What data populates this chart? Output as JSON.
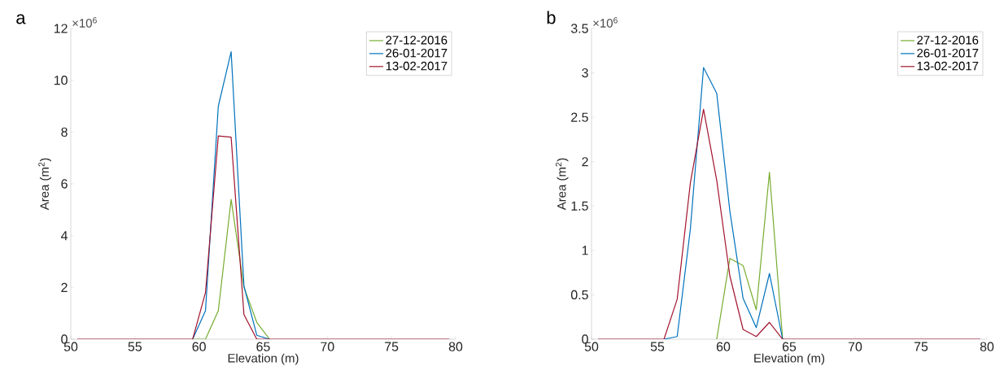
{
  "chart_data": [
    {
      "type": "line",
      "title": "a",
      "xlabel": "Elevation (m)",
      "ylabel": "Area (m$^{2}$)",
      "annotations": [
        "×10$^{6}$"
      ],
      "x": [
        50.5,
        51.5,
        52.5,
        53.5,
        54.5,
        55.5,
        56.5,
        57.5,
        58.5,
        59.5,
        60.5,
        61.5,
        62.5,
        63.5,
        64.5,
        65.5,
        66.5,
        67.5,
        68.5,
        69.5,
        70.5,
        71.5,
        72.5,
        73.5,
        74.5,
        75.5,
        76.5,
        77.5,
        78.5,
        79.5
      ],
      "series": [
        {
          "name": "27-12-2016",
          "color": "#77ac30",
          "values": [
            null,
            null,
            null,
            null,
            null,
            null,
            null,
            null,
            null,
            0,
            0,
            1.1,
            5.4,
            2.0,
            0.65,
            0,
            null,
            null,
            null,
            null,
            null,
            null,
            null,
            null,
            null,
            null,
            null,
            null,
            null,
            null
          ]
        },
        {
          "name": "26-01-2017",
          "color": "#0072bd",
          "values": [
            null,
            null,
            null,
            null,
            null,
            null,
            null,
            null,
            null,
            0,
            1.1,
            9.0,
            11.1,
            2.05,
            0.15,
            0,
            null,
            null,
            null,
            null,
            null,
            null,
            null,
            null,
            null,
            null,
            null,
            null,
            null,
            null
          ]
        },
        {
          "name": "13-02-2017",
          "color": "#a2142f",
          "values": [
            0,
            0,
            0,
            0,
            0,
            0,
            0,
            0,
            0,
            0,
            1.8,
            7.85,
            7.8,
            0.95,
            0,
            0,
            0,
            0,
            0,
            0,
            0,
            0,
            0,
            0,
            0,
            0,
            0,
            0,
            0,
            0
          ]
        }
      ],
      "xlim": [
        50,
        80
      ],
      "xticks": [
        50,
        55,
        60,
        65,
        70,
        75,
        80
      ],
      "ylim": [
        0,
        12
      ],
      "yticks": [
        0,
        2,
        4,
        6,
        8,
        10,
        12
      ],
      "grid": false,
      "legend": "top right",
      "marker": "none",
      "line_style": "solid"
    },
    {
      "type": "line",
      "title": "b",
      "xlabel": "Elevation (m)",
      "ylabel": "Area (m$^{2}$)",
      "annotations": [
        "×10$^{6}$"
      ],
      "x": [
        50.5,
        51.5,
        52.5,
        53.5,
        54.5,
        55.5,
        56.5,
        57.5,
        58.5,
        59.5,
        60.5,
        61.5,
        62.5,
        63.5,
        64.5,
        65.5,
        66.5,
        67.5,
        68.5,
        69.5,
        70.5,
        71.5,
        72.5,
        73.5,
        74.5,
        75.5,
        76.5,
        77.5,
        78.5,
        79.5
      ],
      "series": [
        {
          "name": "27-12-2016",
          "color": "#77ac30",
          "values": [
            null,
            null,
            null,
            null,
            null,
            null,
            null,
            null,
            null,
            0,
            0.91,
            0.83,
            0.33,
            1.88,
            0,
            null,
            null,
            null,
            null,
            null,
            null,
            null,
            null,
            null,
            null,
            null,
            null,
            null,
            null,
            null
          ]
        },
        {
          "name": "26-01-2017",
          "color": "#0072bd",
          "values": [
            null,
            null,
            null,
            null,
            null,
            0,
            0.03,
            1.24,
            3.06,
            2.77,
            1.44,
            0.46,
            0.13,
            0.74,
            0,
            null,
            null,
            null,
            null,
            null,
            null,
            null,
            null,
            null,
            null,
            null,
            null,
            null,
            null,
            null
          ]
        },
        {
          "name": "13-02-2017",
          "color": "#a2142f",
          "values": [
            0,
            0,
            0,
            0,
            0,
            0,
            0.45,
            1.76,
            2.59,
            1.79,
            0.71,
            0.11,
            0.03,
            0.19,
            0,
            0,
            0,
            0,
            0,
            0,
            0,
            0,
            0,
            0,
            0,
            0,
            0,
            0,
            0,
            0
          ]
        }
      ],
      "xlim": [
        50,
        80
      ],
      "xticks": [
        50,
        55,
        60,
        65,
        70,
        75,
        80
      ],
      "ylim": [
        0,
        3.5
      ],
      "yticks": [
        0,
        0.5,
        1,
        1.5,
        2,
        2.5,
        3,
        3.5
      ],
      "grid": false,
      "legend": "top right",
      "marker": "none",
      "line_style": "solid"
    }
  ]
}
